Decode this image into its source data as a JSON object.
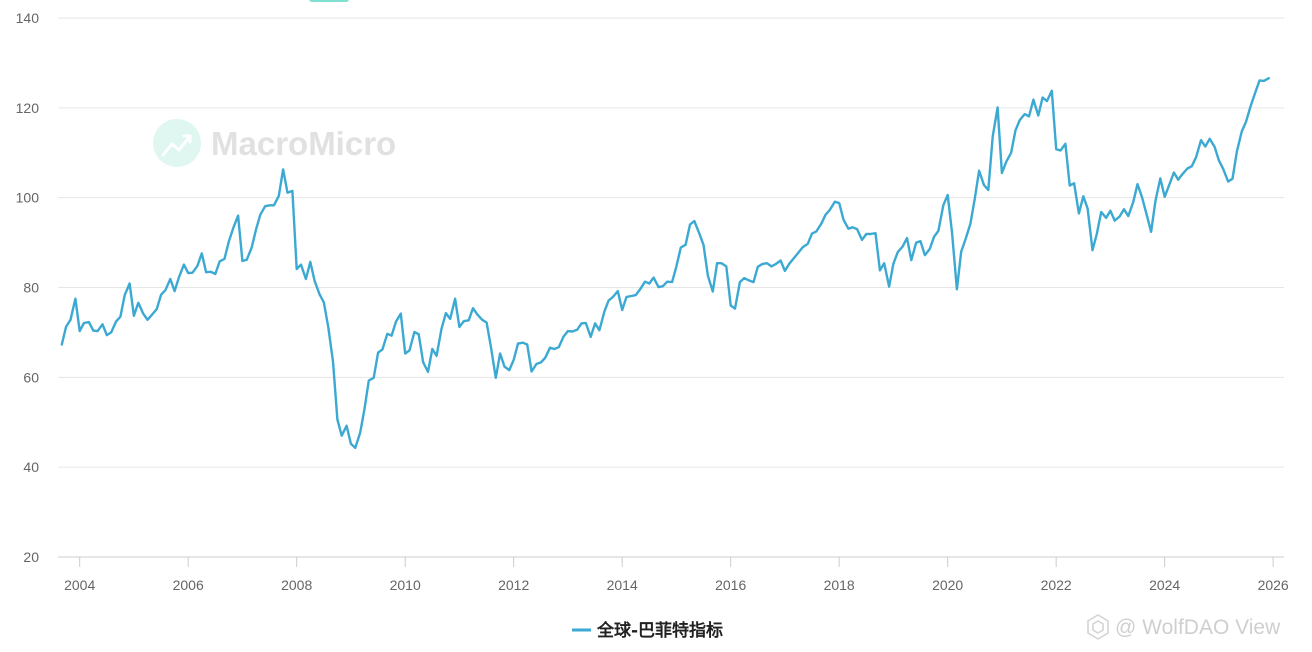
{
  "chart_data": {
    "type": "line",
    "title": "",
    "xlabel": "",
    "ylabel": "",
    "xlim": [
      2003.6,
      2026.2
    ],
    "ylim": [
      20,
      140
    ],
    "y_ticks": [
      20,
      40,
      60,
      80,
      100,
      120,
      140
    ],
    "x_ticks": [
      2004,
      2006,
      2008,
      2010,
      2012,
      2014,
      2016,
      2018,
      2020,
      2022,
      2024,
      2026
    ],
    "grid": "horizontal",
    "legend_position": "bottom",
    "colors": {
      "series": "#3ba9d2",
      "grid": "#e6e6e6",
      "axis": "#cccccc",
      "accent": "#7ee0cf"
    },
    "series": [
      {
        "name": "全球-巴菲特指标",
        "x": [
          2003.67,
          2003.75,
          2003.83,
          2003.92,
          2004.0,
          2004.08,
          2004.17,
          2004.25,
          2004.33,
          2004.42,
          2004.5,
          2004.58,
          2004.67,
          2004.75,
          2004.83,
          2004.92,
          2005.0,
          2005.08,
          2005.17,
          2005.25,
          2005.33,
          2005.42,
          2005.5,
          2005.58,
          2005.67,
          2005.75,
          2005.83,
          2005.92,
          2006.0,
          2006.08,
          2006.17,
          2006.25,
          2006.33,
          2006.42,
          2006.5,
          2006.58,
          2006.67,
          2006.75,
          2006.83,
          2006.92,
          2007.0,
          2007.08,
          2007.17,
          2007.25,
          2007.33,
          2007.42,
          2007.5,
          2007.58,
          2007.67,
          2007.75,
          2007.83,
          2007.92,
          2008.0,
          2008.08,
          2008.17,
          2008.25,
          2008.33,
          2008.42,
          2008.5,
          2008.58,
          2008.67,
          2008.75,
          2008.83,
          2008.92,
          2009.0,
          2009.08,
          2009.17,
          2009.25,
          2009.33,
          2009.42,
          2009.5,
          2009.58,
          2009.67,
          2009.75,
          2009.83,
          2009.92,
          2010.0,
          2010.08,
          2010.17,
          2010.25,
          2010.33,
          2010.42,
          2010.5,
          2010.58,
          2010.67,
          2010.75,
          2010.83,
          2010.92,
          2011.0,
          2011.08,
          2011.17,
          2011.25,
          2011.33,
          2011.42,
          2011.5,
          2011.58,
          2011.67,
          2011.75,
          2011.83,
          2011.92,
          2012.0,
          2012.08,
          2012.17,
          2012.25,
          2012.33,
          2012.42,
          2012.5,
          2012.58,
          2012.67,
          2012.75,
          2012.83,
          2012.92,
          2013.0,
          2013.08,
          2013.17,
          2013.25,
          2013.33,
          2013.42,
          2013.5,
          2013.58,
          2013.67,
          2013.75,
          2013.83,
          2013.92,
          2014.0,
          2014.08,
          2014.17,
          2014.25,
          2014.33,
          2014.42,
          2014.5,
          2014.58,
          2014.67,
          2014.75,
          2014.83,
          2014.92,
          2015.0,
          2015.08,
          2015.17,
          2015.25,
          2015.33,
          2015.42,
          2015.5,
          2015.58,
          2015.67,
          2015.75,
          2015.83,
          2015.92,
          2016.0,
          2016.08,
          2016.17,
          2016.25,
          2016.33,
          2016.42,
          2016.5,
          2016.58,
          2016.67,
          2016.75,
          2016.83,
          2016.92,
          2017.0,
          2017.08,
          2017.17,
          2017.25,
          2017.33,
          2017.42,
          2017.5,
          2017.58,
          2017.67,
          2017.75,
          2017.83,
          2017.92,
          2018.0,
          2018.08,
          2018.17,
          2018.25,
          2018.33,
          2018.42,
          2018.5,
          2018.58,
          2018.67,
          2018.75,
          2018.83,
          2018.92,
          2019.0,
          2019.08,
          2019.17,
          2019.25,
          2019.33,
          2019.42,
          2019.5,
          2019.58,
          2019.67,
          2019.75,
          2019.83,
          2019.92,
          2020.0,
          2020.08,
          2020.17,
          2020.25,
          2020.33,
          2020.42,
          2020.5,
          2020.58,
          2020.67,
          2020.75,
          2020.83,
          2020.92,
          2021.0,
          2021.08,
          2021.17,
          2021.25,
          2021.33,
          2021.42,
          2021.5,
          2021.58,
          2021.67,
          2021.75,
          2021.83,
          2021.92,
          2022.0,
          2022.08,
          2022.17,
          2022.25,
          2022.33,
          2022.42,
          2022.5,
          2022.58,
          2022.67,
          2022.75,
          2022.83,
          2022.92,
          2023.0,
          2023.08,
          2023.17,
          2023.25,
          2023.33,
          2023.42,
          2023.5,
          2023.58,
          2023.67,
          2023.75,
          2023.83,
          2023.92,
          2024.0,
          2024.08,
          2024.17,
          2024.25,
          2024.33,
          2024.42,
          2024.5,
          2024.58,
          2024.67,
          2024.75,
          2024.83,
          2024.92,
          2025.0,
          2025.08,
          2025.17,
          2025.25,
          2025.33,
          2025.42,
          2025.5,
          2025.58,
          2025.67,
          2025.75,
          2025.83,
          2025.92
        ],
        "values": [
          67.3,
          71.3,
          72.8,
          77.5,
          70.3,
          72.1,
          72.3,
          70.4,
          70.3,
          71.8,
          69.4,
          70.0,
          72.4,
          73.5,
          78.3,
          80.9,
          73.7,
          76.6,
          74.2,
          72.8,
          73.9,
          75.2,
          78.4,
          79.4,
          81.9,
          79.2,
          82.3,
          85.1,
          83.2,
          83.3,
          84.8,
          87.6,
          83.4,
          83.5,
          83.0,
          85.8,
          86.4,
          90.3,
          93.2,
          96.0,
          85.9,
          86.2,
          88.9,
          92.9,
          96.2,
          98.1,
          98.3,
          98.3,
          100.4,
          106.3,
          101.1,
          101.5,
          84.1,
          85.1,
          81.9,
          85.7,
          81.5,
          78.5,
          76.7,
          71.3,
          63.5,
          50.6,
          47.0,
          49.2,
          45.2,
          44.3,
          47.7,
          53.0,
          59.3,
          59.9,
          65.5,
          66.2,
          69.7,
          69.3,
          72.4,
          74.2,
          65.3,
          66.0,
          70.1,
          69.6,
          63.4,
          61.2,
          66.3,
          64.8,
          70.8,
          74.3,
          73.0,
          77.5,
          71.2,
          72.5,
          72.7,
          75.4,
          74.0,
          72.8,
          72.2,
          66.8,
          59.9,
          65.3,
          62.4,
          61.6,
          63.9,
          67.5,
          67.7,
          67.3,
          61.3,
          63.0,
          63.3,
          64.3,
          66.6,
          66.3,
          66.7,
          69.1,
          70.3,
          70.2,
          70.6,
          72.0,
          72.1,
          69.0,
          72.0,
          70.5,
          74.6,
          77.1,
          77.9,
          79.2,
          75.0,
          77.9,
          78.1,
          78.3,
          79.6,
          81.3,
          80.9,
          82.2,
          80.1,
          80.3,
          81.3,
          81.2,
          84.7,
          88.9,
          89.5,
          94.0,
          94.8,
          92.1,
          89.5,
          82.6,
          79.1,
          85.4,
          85.4,
          84.7,
          76.0,
          75.3,
          81.2,
          82.1,
          81.6,
          81.2,
          84.6,
          85.2,
          85.4,
          84.7,
          85.2,
          86.0,
          83.7,
          85.3,
          86.6,
          87.8,
          89.0,
          89.7,
          92.0,
          92.5,
          94.2,
          96.2,
          97.3,
          99.1,
          98.8,
          95.1,
          93.1,
          93.4,
          93.0,
          90.6,
          91.9,
          91.9,
          92.1,
          83.8,
          85.4,
          80.2,
          85.3,
          87.9,
          89.1,
          91.0,
          86.1,
          90.0,
          90.3,
          87.2,
          88.6,
          91.3,
          92.6,
          98.3,
          100.6,
          92.3,
          79.6,
          88.0,
          90.8,
          94.2,
          99.8,
          106.0,
          102.8,
          101.7,
          113.6,
          120.1,
          105.5,
          108.0,
          110.0,
          115.0,
          117.3,
          118.6,
          118.1,
          121.8,
          118.3,
          122.3,
          121.5,
          123.8,
          110.8,
          110.5,
          112.0,
          102.7,
          103.2,
          96.5,
          100.3,
          97.6,
          88.3,
          91.9,
          96.8,
          95.5,
          97.1,
          94.9,
          95.8,
          97.4,
          95.9,
          99.0,
          103.0,
          100.2,
          96.1,
          92.4,
          99.2,
          104.3,
          100.2,
          102.7,
          105.6,
          104.0,
          105.3,
          106.5,
          107.0,
          109.0,
          112.8,
          111.4,
          113.1,
          111.3,
          108.3,
          106.4,
          103.6,
          104.2,
          110.2,
          114.7,
          116.9,
          120.2,
          123.4,
          126.1,
          126.0,
          126.6
        ]
      }
    ]
  },
  "watermark": {
    "text": "MacroMicro",
    "icon": "chart-growth-icon"
  },
  "source_credit": {
    "text": "@ WolfDAO View",
    "icon": "cube-logo-icon"
  }
}
